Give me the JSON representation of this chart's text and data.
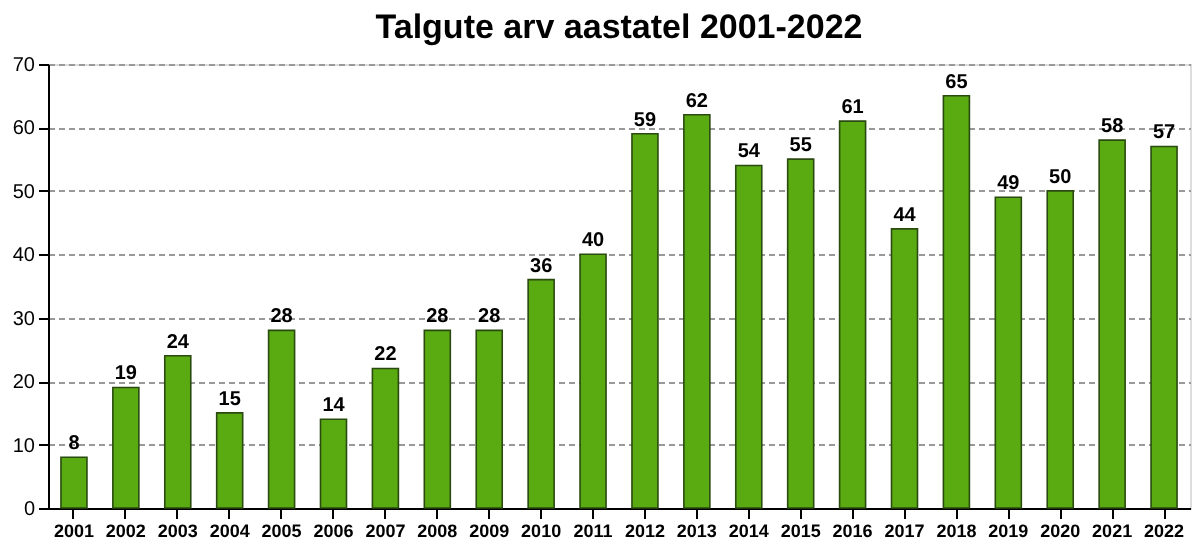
{
  "chart_data": {
    "type": "bar",
    "title": "Talgute arv aastatel 2001-2022",
    "categories": [
      "2001",
      "2002",
      "2003",
      "2004",
      "2005",
      "2006",
      "2007",
      "2008",
      "2009",
      "2010",
      "2011",
      "2012",
      "2013",
      "2014",
      "2015",
      "2016",
      "2017",
      "2018",
      "2019",
      "2020",
      "2021",
      "2022"
    ],
    "values": [
      8,
      19,
      24,
      15,
      28,
      14,
      22,
      28,
      28,
      36,
      40,
      59,
      62,
      54,
      55,
      61,
      44,
      65,
      49,
      50,
      58,
      57
    ],
    "color": "#5aab12",
    "ylim": [
      0,
      70
    ],
    "yticks": [
      0,
      10,
      20,
      30,
      40,
      50,
      60,
      70
    ],
    "grid": "y",
    "data_labels": true
  }
}
